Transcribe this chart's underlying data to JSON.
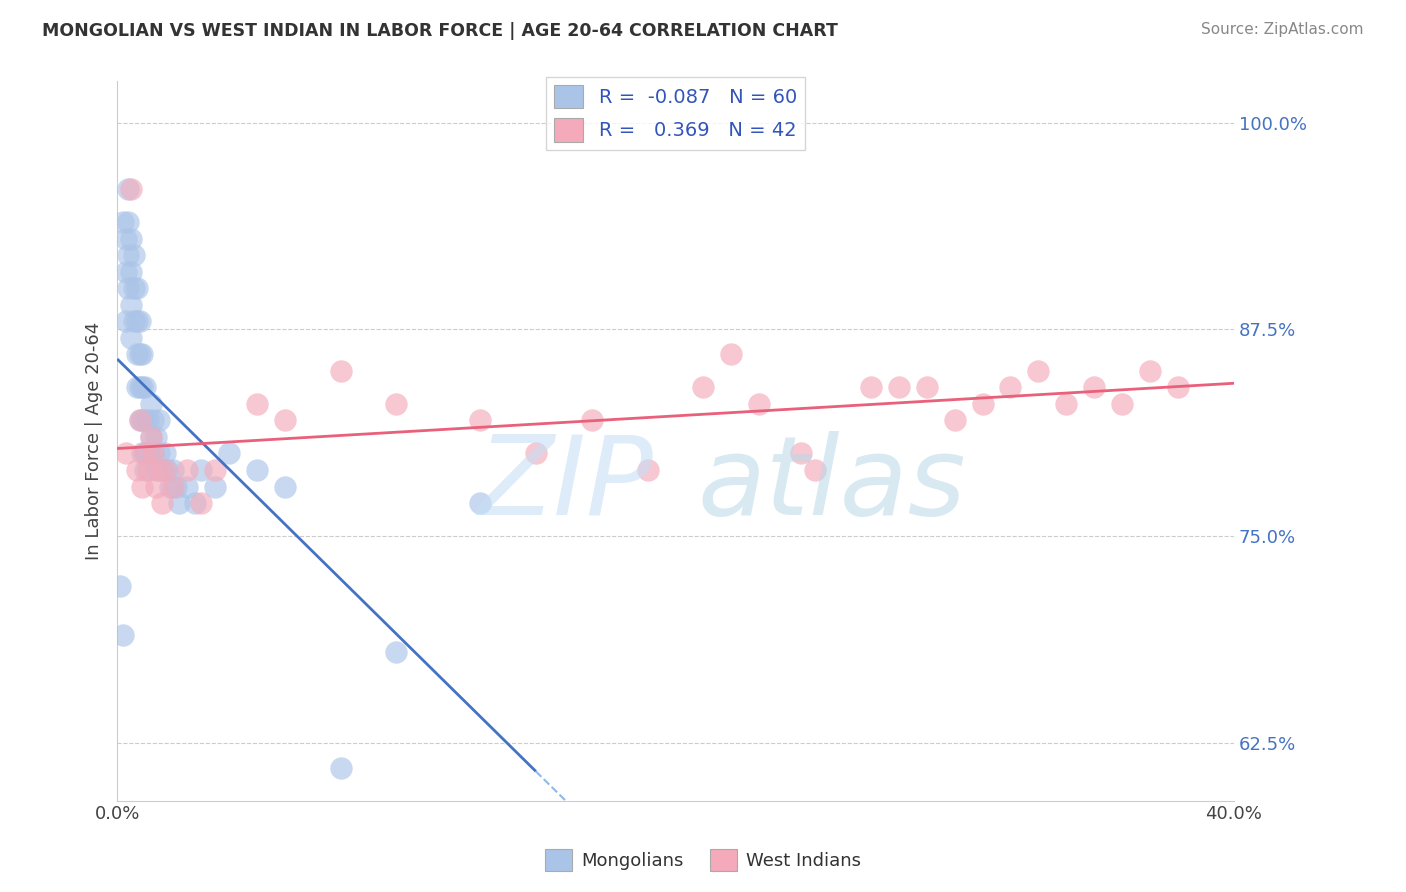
{
  "title": "MONGOLIAN VS WEST INDIAN IN LABOR FORCE | AGE 20-64 CORRELATION CHART",
  "source": "Source: ZipAtlas.com",
  "ylabel": "In Labor Force | Age 20-64",
  "x_label_mongolian": "Mongolians",
  "x_label_westindian": "West Indians",
  "xlim": [
    0.0,
    0.4
  ],
  "ylim": [
    0.59,
    1.025
  ],
  "xticks": [
    0.0,
    0.1,
    0.2,
    0.3,
    0.4
  ],
  "xticklabels": [
    "0.0%",
    "",
    "",
    "",
    "40.0%"
  ],
  "yticks": [
    0.625,
    0.75,
    0.875,
    1.0
  ],
  "yticklabels": [
    "62.5%",
    "75.0%",
    "87.5%",
    "100.0%"
  ],
  "mongolian_color": "#aac4e8",
  "westindian_color": "#f4aabb",
  "mongolian_line_color": "#4472c4",
  "westindian_line_color": "#e8607a",
  "mongolian_line_dashed_color": "#90b8e8",
  "R_mongolian": -0.087,
  "N_mongolian": 60,
  "R_westindian": 0.369,
  "N_westindian": 42,
  "legend_R_color": "#3355bb",
  "mongolian_x": [
    0.001,
    0.002,
    0.002,
    0.003,
    0.003,
    0.003,
    0.004,
    0.004,
    0.004,
    0.004,
    0.005,
    0.005,
    0.005,
    0.005,
    0.006,
    0.006,
    0.006,
    0.007,
    0.007,
    0.007,
    0.007,
    0.008,
    0.008,
    0.008,
    0.008,
    0.009,
    0.009,
    0.009,
    0.009,
    0.01,
    0.01,
    0.01,
    0.01,
    0.011,
    0.011,
    0.012,
    0.012,
    0.013,
    0.013,
    0.014,
    0.014,
    0.015,
    0.015,
    0.016,
    0.017,
    0.018,
    0.019,
    0.02,
    0.021,
    0.022,
    0.025,
    0.028,
    0.03,
    0.035,
    0.04,
    0.05,
    0.06,
    0.08,
    0.1,
    0.13
  ],
  "mongolian_y": [
    0.72,
    0.69,
    0.94,
    0.93,
    0.91,
    0.88,
    0.96,
    0.94,
    0.92,
    0.9,
    0.93,
    0.91,
    0.89,
    0.87,
    0.92,
    0.9,
    0.88,
    0.9,
    0.88,
    0.86,
    0.84,
    0.88,
    0.86,
    0.84,
    0.82,
    0.86,
    0.84,
    0.82,
    0.8,
    0.84,
    0.82,
    0.8,
    0.79,
    0.82,
    0.8,
    0.83,
    0.81,
    0.82,
    0.8,
    0.81,
    0.79,
    0.82,
    0.8,
    0.79,
    0.8,
    0.79,
    0.78,
    0.79,
    0.78,
    0.77,
    0.78,
    0.77,
    0.79,
    0.78,
    0.8,
    0.79,
    0.78,
    0.61,
    0.68,
    0.77
  ],
  "westindian_x": [
    0.003,
    0.005,
    0.007,
    0.008,
    0.009,
    0.01,
    0.011,
    0.012,
    0.013,
    0.014,
    0.015,
    0.016,
    0.017,
    0.02,
    0.025,
    0.03,
    0.035,
    0.05,
    0.06,
    0.08,
    0.1,
    0.13,
    0.15,
    0.17,
    0.19,
    0.21,
    0.22,
    0.23,
    0.245,
    0.25,
    0.27,
    0.28,
    0.29,
    0.3,
    0.31,
    0.32,
    0.33,
    0.34,
    0.35,
    0.36,
    0.37,
    0.38
  ],
  "westindian_y": [
    0.8,
    0.96,
    0.79,
    0.82,
    0.78,
    0.8,
    0.79,
    0.81,
    0.8,
    0.78,
    0.79,
    0.77,
    0.79,
    0.78,
    0.79,
    0.77,
    0.79,
    0.83,
    0.82,
    0.85,
    0.83,
    0.82,
    0.8,
    0.82,
    0.79,
    0.84,
    0.86,
    0.83,
    0.8,
    0.79,
    0.84,
    0.84,
    0.84,
    0.82,
    0.83,
    0.84,
    0.85,
    0.83,
    0.84,
    0.83,
    0.85,
    0.84
  ],
  "mon_line_x_start": 0.0,
  "mon_line_x_solid_end": 0.15,
  "mon_line_x_end": 0.4,
  "wi_line_x_start": 0.0,
  "wi_line_x_end": 0.4
}
